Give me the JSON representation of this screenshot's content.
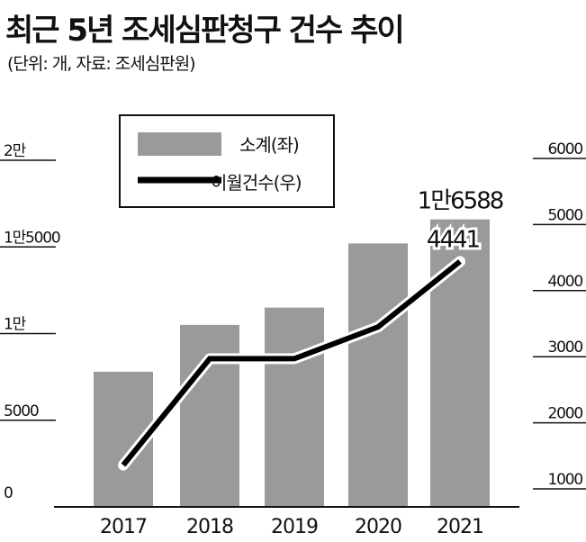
{
  "title": "최근 5년 조세심판청구 건수 추이",
  "subtitle": "(단위: 개, 자료: 조세심판원)",
  "chart_data": {
    "type": "bar+line",
    "categories": [
      "2017",
      "2018",
      "2019",
      "2020",
      "2021"
    ],
    "series": [
      {
        "name": "소계(좌)",
        "type": "bar",
        "axis": "left",
        "values": [
          7800,
          10500,
          11500,
          15200,
          16588
        ],
        "color": "#9a9a9a"
      },
      {
        "name": "이월건수(우)",
        "type": "line",
        "axis": "right",
        "values": [
          1360,
          2970,
          2970,
          3450,
          4441
        ],
        "color": "#000000"
      }
    ],
    "left_axis": {
      "ylim": [
        0,
        20000
      ],
      "ticks": [
        0,
        5000,
        10000,
        15000,
        20000
      ],
      "tick_labels": [
        "0",
        "5000",
        "1만",
        "1만5000",
        "2만"
      ]
    },
    "right_axis": {
      "ylim": [
        1000,
        6000
      ],
      "ticks": [
        1000,
        2000,
        3000,
        4000,
        5000,
        6000
      ],
      "tick_labels": [
        "1000",
        "2000",
        "3000",
        "4000",
        "5000",
        "6000"
      ]
    },
    "annotations": [
      {
        "series": "소계(좌)",
        "category": "2021",
        "text": "1만6588"
      },
      {
        "series": "이월건수(우)",
        "category": "2021",
        "text": "4441"
      }
    ],
    "legend_position": "top-left",
    "grid": false
  }
}
